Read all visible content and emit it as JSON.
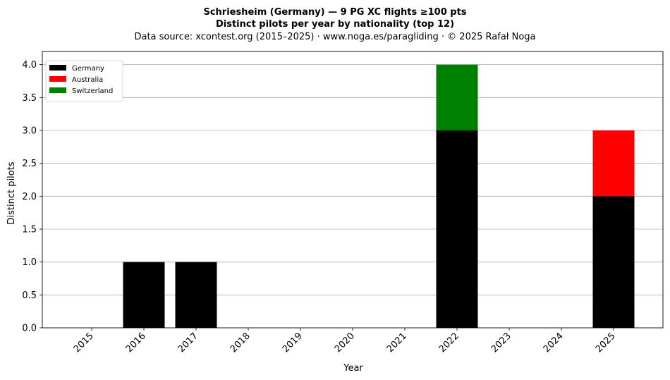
{
  "title_lines": [
    "Schriesheim (Germany)  —  9 PG XC flights ≥100 pts",
    "Distinct pilots per year by nationality (top 12)",
    "Data source: xcontest.org (2015–2025)  ·  www.noga.es/paragliding  ·  © 2025 Rafał Noga"
  ],
  "chart_data": {
    "type": "bar",
    "stacked": true,
    "title": "Schriesheim (Germany)  —  9 PG XC flights ≥100 pts",
    "subtitle": "Distinct pilots per year by nationality (top 12)",
    "xlabel": "Year",
    "ylabel": "Distinct pilots",
    "categories": [
      "2015",
      "2016",
      "2017",
      "2018",
      "2019",
      "2020",
      "2021",
      "2022",
      "2023",
      "2024",
      "2025"
    ],
    "series": [
      {
        "name": "Germany",
        "color": "#000000",
        "values": [
          0,
          1,
          1,
          0,
          0,
          0,
          0,
          3,
          0,
          0,
          2
        ]
      },
      {
        "name": "Australia",
        "color": "#ff0000",
        "values": [
          0,
          0,
          0,
          0,
          0,
          0,
          0,
          0,
          0,
          0,
          1
        ]
      },
      {
        "name": "Switzerland",
        "color": "#008000",
        "values": [
          0,
          0,
          0,
          0,
          0,
          0,
          0,
          1,
          0,
          0,
          0
        ]
      }
    ],
    "ylim": [
      0,
      4.2
    ],
    "yticks": [
      "0.0",
      "0.5",
      "1.0",
      "1.5",
      "2.0",
      "2.5",
      "3.0",
      "3.5",
      "4.0"
    ],
    "grid": "y",
    "legend_position": "top-left"
  }
}
